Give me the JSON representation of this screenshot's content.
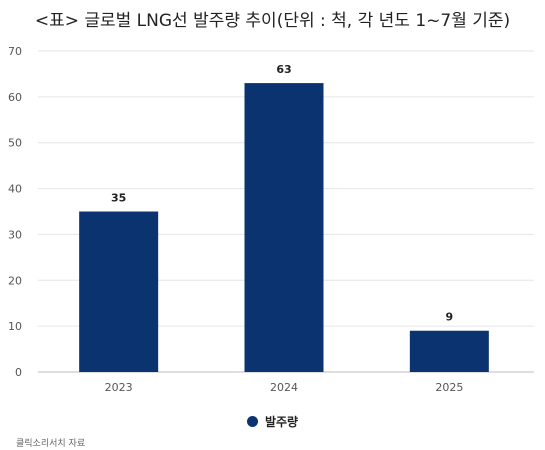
{
  "chart_data": {
    "type": "bar",
    "title": "<표> 글로벌 LNG선 발주량 추이(단위 : 척, 각 년도 1~7월 기준)",
    "categories": [
      "2023",
      "2024",
      "2025"
    ],
    "series": [
      {
        "name": "발주량",
        "values": [
          35,
          63,
          9
        ]
      }
    ],
    "data_labels": [
      "35",
      "63",
      "9"
    ],
    "y_ticks": [
      "0",
      "10",
      "20",
      "30",
      "40",
      "50",
      "60",
      "70"
    ],
    "ylim": [
      0,
      70
    ],
    "xlabel": "",
    "ylabel": "",
    "grid": true,
    "legend_position": "bottom",
    "bar_color": "#0b3370"
  },
  "source": "클릭소리서치 자료"
}
